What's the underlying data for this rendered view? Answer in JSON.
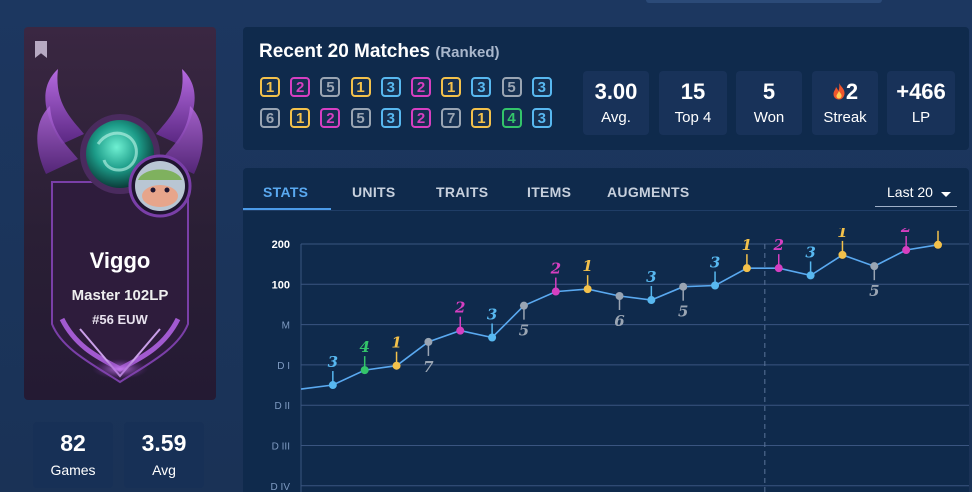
{
  "profile": {
    "name": "Viggo",
    "rank": "Master 102LP",
    "ladder": "#56 EUW",
    "stats": [
      {
        "value": "82",
        "label": "Games"
      },
      {
        "value": "3.59",
        "label": "Avg"
      }
    ]
  },
  "recent": {
    "title": "Recent 20 Matches",
    "subtitle": "(Ranked)",
    "placements_row1": [
      "1",
      "2",
      "5",
      "1",
      "3",
      "2",
      "1",
      "3",
      "5",
      "3"
    ],
    "placements_row2": [
      "6",
      "1",
      "2",
      "5",
      "3",
      "2",
      "7",
      "1",
      "4",
      "3"
    ],
    "summary": [
      {
        "value": "3.00",
        "label": "Avg."
      },
      {
        "value": "15",
        "label": "Top 4"
      },
      {
        "value": "5",
        "label": "Won"
      },
      {
        "value": "2",
        "label": "Streak",
        "icon": "fire-icon"
      },
      {
        "value": "+466",
        "label": "LP"
      }
    ]
  },
  "tabs": [
    "STATS",
    "UNITS",
    "TRAITS",
    "ITEMS",
    "AUGMENTS"
  ],
  "active_tab": "STATS",
  "filter": {
    "selected": "Last 20"
  },
  "colors": {
    "p1": "#f3c14b",
    "p2": "#d63fc1",
    "p3": "#58b8f0",
    "p4": "#33c46a",
    "p5": "#9aa5b3",
    "p6": "#9aa5b3",
    "p7": "#9aa5b3",
    "line": "#5aa9f0"
  },
  "chart_data": {
    "type": "line",
    "y_ticks": [
      "200",
      "100",
      "M",
      "D I",
      "D II",
      "D III",
      "D IV"
    ],
    "placements": [
      3,
      4,
      1,
      7,
      2,
      3,
      5,
      2,
      1,
      6,
      3,
      5,
      3,
      1,
      2,
      3,
      1,
      5,
      2,
      1
    ],
    "values": [
      2.6,
      2.5,
      2.13,
      2.02,
      1.43,
      1.15,
      1.32,
      0.53,
      0.18,
      0.12,
      0.29,
      0.39,
      0.06,
      0.03,
      -0.4,
      -0.4,
      -0.22,
      -0.73,
      -0.45,
      -0.85,
      -0.98
    ],
    "grid": true,
    "divider_after_game": 15
  }
}
